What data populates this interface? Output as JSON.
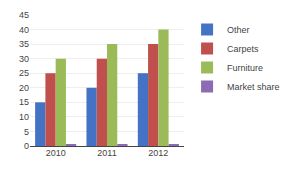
{
  "chart_data": {
    "type": "bar",
    "categories": [
      "2010",
      "2011",
      "2012"
    ],
    "series": [
      {
        "name": "Other",
        "color": "#4472C4",
        "values": [
          15,
          20,
          25
        ]
      },
      {
        "name": "Carpets",
        "color": "#C0504D",
        "values": [
          25,
          30,
          35
        ]
      },
      {
        "name": "Furniture",
        "color": "#9BBB59",
        "values": [
          30,
          35,
          40
        ]
      },
      {
        "name": "Market share",
        "color": "#8B6BB1",
        "values": [
          0.5,
          0.5,
          0.5
        ]
      }
    ],
    "ylim": [
      0,
      45
    ],
    "yticks": [
      0,
      5,
      10,
      15,
      20,
      25,
      30,
      35,
      40,
      45
    ],
    "grid": true,
    "legend": "right"
  }
}
